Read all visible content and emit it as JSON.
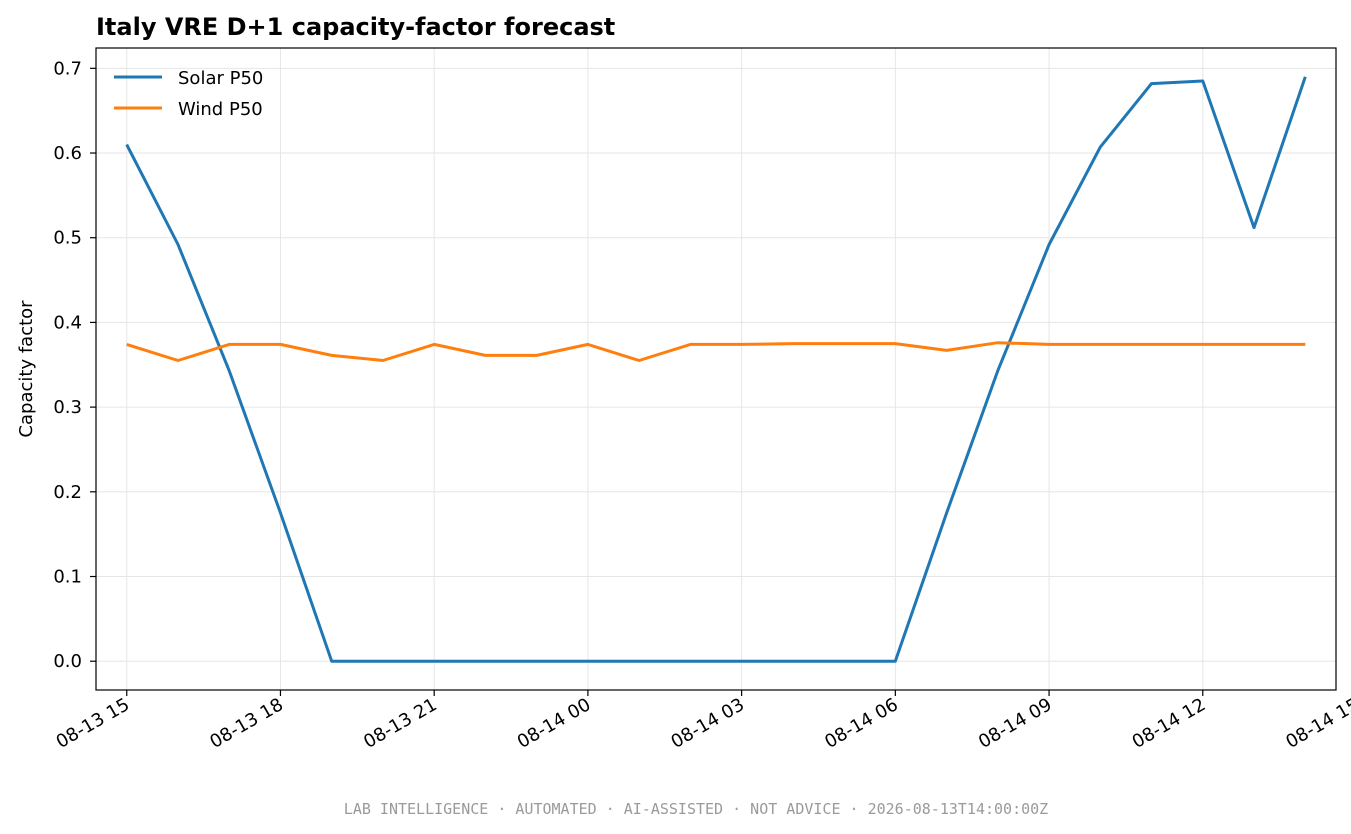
{
  "chart_data": {
    "type": "line",
    "title": "Italy VRE D+1 capacity-factor forecast",
    "xlabel": "",
    "ylabel": "Capacity factor",
    "x": [
      "08-13 15",
      "08-13 16",
      "08-13 17",
      "08-13 18",
      "08-13 19",
      "08-13 20",
      "08-13 21",
      "08-13 22",
      "08-13 23",
      "08-14 00",
      "08-14 01",
      "08-14 02",
      "08-14 03",
      "08-14 04",
      "08-14 05",
      "08-14 06",
      "08-14 07",
      "08-14 08",
      "08-14 09",
      "08-14 10",
      "08-14 11",
      "08-14 12",
      "08-14 13",
      "08-14 14"
    ],
    "x_ticks": [
      "08-13 15",
      "08-13 18",
      "08-13 21",
      "08-14 00",
      "08-14 03",
      "08-14 06",
      "08-14 09",
      "08-14 12",
      "08-14 15"
    ],
    "xlim": [
      "08-13 14:24",
      "08-14 14:36"
    ],
    "ylim": [
      -0.034,
      0.724
    ],
    "y_ticks": [
      "0.0",
      "0.1",
      "0.2",
      "0.3",
      "0.4",
      "0.5",
      "0.6",
      "0.7"
    ],
    "grid": true,
    "legend_position": "top-left",
    "series": [
      {
        "name": "Solar P50",
        "color": "#1f77b4",
        "values": [
          0.61,
          0.492,
          0.343,
          0.175,
          0.0,
          0.0,
          0.0,
          0.0,
          0.0,
          0.0,
          0.0,
          0.0,
          0.0,
          0.0,
          0.0,
          0.0,
          0.175,
          0.343,
          0.492,
          0.607,
          0.682,
          0.685,
          0.512,
          0.69
        ]
      },
      {
        "name": "Wind P50",
        "color": "#ff7f0e",
        "values": [
          0.374,
          0.355,
          0.374,
          0.374,
          0.361,
          0.355,
          0.374,
          0.361,
          0.361,
          0.374,
          0.355,
          0.374,
          0.374,
          0.375,
          0.375,
          0.375,
          0.367,
          0.376,
          0.374,
          0.374,
          0.374,
          0.374,
          0.374,
          0.374
        ]
      }
    ]
  },
  "footer": {
    "text": "LAB INTELLIGENCE · AUTOMATED · AI-ASSISTED · NOT ADVICE · 2026-08-13T14:00:00Z"
  }
}
